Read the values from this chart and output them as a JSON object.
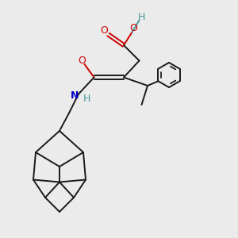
{
  "background_color": "#ebebeb",
  "bond_color": "#1a1a1a",
  "oxygen_color": "#cc0000",
  "nitrogen_color": "#0000cc",
  "hydrogen_color": "#4a9a9a",
  "figsize": [
    3.0,
    3.0
  ],
  "dpi": 100,
  "xlim": [
    0,
    10
  ],
  "ylim": [
    0,
    10
  ]
}
